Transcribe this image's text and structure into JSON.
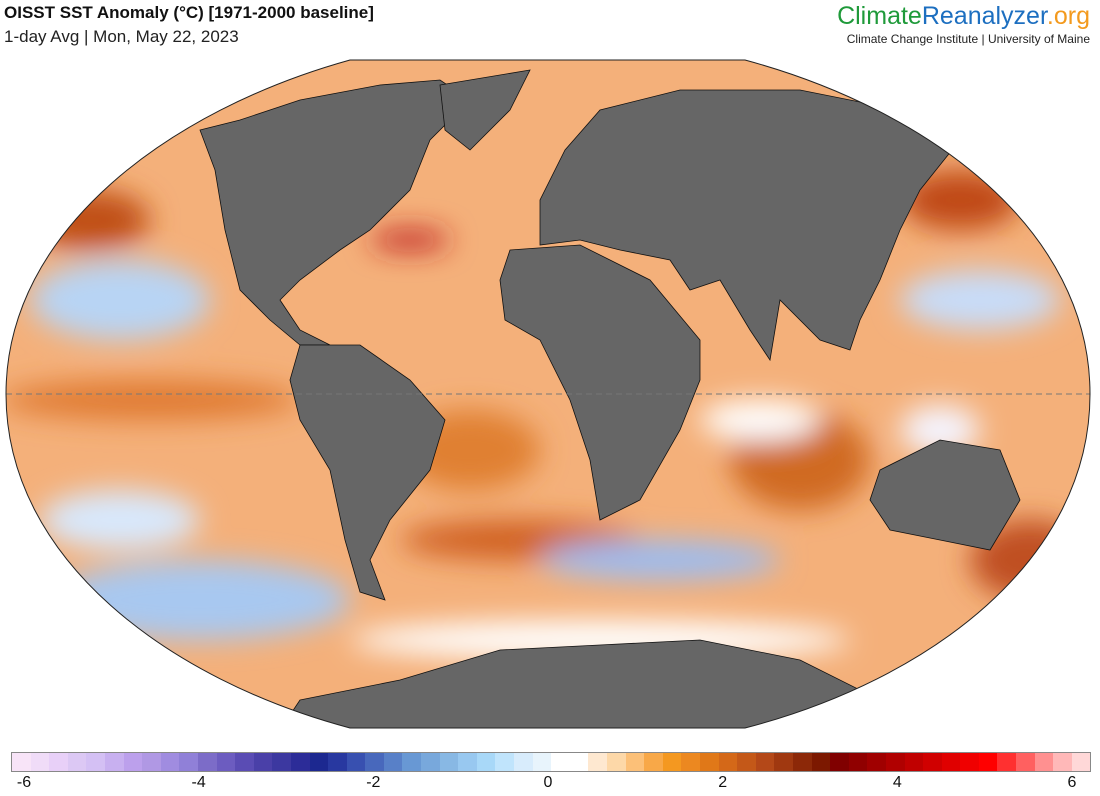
{
  "header": {
    "title": "OISST SST Anomaly (°C) [1971-2000 baseline]",
    "subtitle": "1-day Avg | Mon, May 22, 2023"
  },
  "logo": {
    "part1": "Climate",
    "part2": "Reanalyzer",
    ".org": ".org",
    "institute": "Climate Change Institute | University of Maine"
  },
  "colorbar": {
    "ticks": [
      "-6",
      "-4",
      "-2",
      "0",
      "2",
      "4",
      "6"
    ],
    "range": [
      -6,
      6
    ],
    "colors": [
      "#f8e4f8",
      "#f0dcf8",
      "#e8d0f8",
      "#dcc8f4",
      "#d4c0f4",
      "#c8b0f0",
      "#bca0ec",
      "#b098e4",
      "#a08ce0",
      "#9080d8",
      "#7c6cc8",
      "#6c5cc0",
      "#5a4cb4",
      "#4a40a8",
      "#3c38a0",
      "#2c2c98",
      "#1c2890",
      "#2838a0",
      "#3850b0",
      "#4868bc",
      "#5880c8",
      "#6898d4",
      "#78a8dc",
      "#88b8e4",
      "#98c8f0",
      "#a8d8f8",
      "#c0e4fc",
      "#d8ecfc",
      "#e8f4fc",
      "#ffffff",
      "#ffffff",
      "#fee8d0",
      "#fdd8a8",
      "#fcc078",
      "#f8a848",
      "#f49820",
      "#ec8820",
      "#e07818",
      "#d46818",
      "#c45818",
      "#b44818",
      "#a03810",
      "#8c2808",
      "#7c1800",
      "#800000",
      "#900000",
      "#a00000",
      "#b00000",
      "#c00000",
      "#d00000",
      "#e00000",
      "#f00000",
      "#ff0000",
      "#ff3030",
      "#ff6060",
      "#ff9090",
      "#ffb8b8",
      "#ffd8d8"
    ]
  },
  "colors": {
    "land": "#666666",
    "ocean_warm": "#f4a868",
    "ocean_cool": "#a8ccf0"
  }
}
